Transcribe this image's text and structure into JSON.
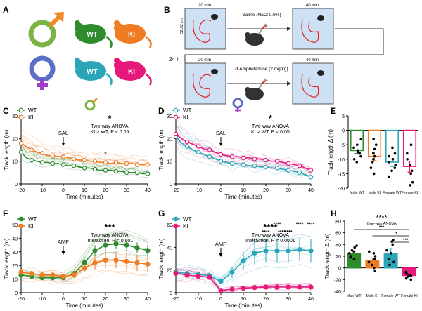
{
  "colors": {
    "male_wt": "#2e8b2e",
    "male_ki": "#ef7b22",
    "female_wt": "#2aa6b8",
    "female_ki": "#e6197a",
    "male_symbol": "#7cb342",
    "female_symbol_top": "#3ca0c8",
    "female_symbol_bottom": "#a03cc8"
  },
  "panelA": {
    "label": "A",
    "mice": [
      "WT",
      "KI",
      "WT",
      "KI"
    ]
  },
  "panelB": {
    "label": "B",
    "time1": "20 min",
    "time2": "40 min",
    "time3": "20 min",
    "time4": "40 min",
    "arena": "52x52 cm",
    "saline": "Saline (NaCl 0.9%)",
    "amph": "d-Amphetamine (2 mg/kg)",
    "gap": "24 h"
  },
  "stats": {
    "C": {
      "star": "*",
      "line1": "Two-way ANOVA",
      "line2": "KI > WT, P < 0.05",
      "marker": "SAL"
    },
    "D": {
      "star": "*",
      "line1": "Two-way ANOVA",
      "line2": "KI > WT, P < 0.05",
      "marker": "SAL"
    },
    "F": {
      "star": "***",
      "line1": "Two-way ANOVA",
      "line2": "Interaction, P < 0.001",
      "marker": "AMP"
    },
    "G": {
      "star": "****",
      "line1": "Two-way ANOVA",
      "line2": "Interaction, P < 0.0001",
      "marker": "AMP"
    },
    "H": {
      "star": "****",
      "line1": "One-way ANOVA"
    }
  },
  "chart_data": [
    {
      "panel": "C",
      "type": "line",
      "xlabel": "Time (minutes)",
      "ylabel": "Track length (m)",
      "xlim": [
        -20,
        40
      ],
      "ylim": [
        0,
        30
      ],
      "xticks": [
        -20,
        -10,
        0,
        10,
        20,
        30,
        40
      ],
      "yticks": [
        0,
        10,
        20,
        30
      ],
      "x": [
        -20,
        -17.5,
        -15,
        -12.5,
        -10,
        -7.5,
        -5,
        -2.5,
        0,
        2.5,
        5,
        7.5,
        10,
        12.5,
        15,
        17.5,
        20,
        22.5,
        25,
        27.5,
        30,
        32.5,
        35,
        37.5,
        40
      ],
      "series": [
        {
          "name": "WT",
          "values": [
            14,
            11.5,
            10.5,
            10,
            9.5,
            9.5,
            9,
            9,
            8.5,
            8,
            8,
            7.5,
            7,
            7,
            6.5,
            6,
            6,
            6,
            5.5,
            5.5,
            5,
            5,
            5,
            4.5,
            4.5
          ]
        },
        {
          "name": "KI",
          "values": [
            18,
            16.5,
            15,
            14,
            13.5,
            12.5,
            12.5,
            12,
            12,
            11.5,
            11,
            10.5,
            10.5,
            10,
            10,
            9.5,
            9.5,
            9,
            9.5,
            9,
            9,
            9,
            8.5,
            8.5,
            8.5
          ]
        }
      ],
      "annotation": "*",
      "annotation_x": 20
    },
    {
      "panel": "D",
      "type": "line",
      "xlabel": "Time (minutes)",
      "ylabel": "Track length (m)",
      "xlim": [
        -20,
        40
      ],
      "ylim": [
        0,
        30
      ],
      "xticks": [
        -20,
        -10,
        0,
        10,
        20,
        30,
        40
      ],
      "yticks": [
        0,
        10,
        20,
        30
      ],
      "x": [
        -20,
        -17.5,
        -15,
        -12.5,
        -10,
        -7.5,
        -5,
        -2.5,
        0,
        2.5,
        5,
        7.5,
        10,
        12.5,
        15,
        17.5,
        20,
        22.5,
        25,
        27.5,
        30,
        32.5,
        35,
        37.5,
        40
      ],
      "series": [
        {
          "name": "WT",
          "values": [
            21,
            18,
            16.5,
            15,
            14,
            13,
            12,
            11,
            10,
            9.5,
            9,
            9,
            8.5,
            8,
            8,
            7.5,
            7.5,
            7,
            7,
            6.5,
            6,
            5.5,
            5,
            4,
            3
          ]
        },
        {
          "name": "KI",
          "values": [
            22,
            20,
            18.5,
            17.5,
            16.5,
            15.5,
            15,
            14,
            13,
            12.5,
            12,
            12,
            11.5,
            11.5,
            11,
            11,
            10.5,
            10,
            10,
            9.5,
            9,
            8.5,
            8,
            7,
            6
          ]
        }
      ]
    },
    {
      "panel": "E",
      "type": "bar",
      "ylabel": "Track length Δ (m)",
      "categories": [
        "Male WT",
        "Male KI",
        "Female WT",
        "Female KI"
      ],
      "values": [
        -7,
        -9,
        -11,
        -12.5
      ],
      "errors": [
        1,
        1.5,
        1.5,
        2
      ],
      "ylim": [
        -20,
        5
      ],
      "yticks": [
        -20,
        -15,
        -10,
        -5,
        0,
        5
      ],
      "points": [
        [
          -3,
          -5,
          -6,
          -7,
          -7.5,
          -8,
          -9,
          -10,
          -11
        ],
        [
          -3,
          -5,
          -6.5,
          -8,
          -9,
          -10,
          -11,
          -13,
          -15
        ],
        [
          -6,
          -8,
          -9,
          -10,
          -11,
          -12,
          -13,
          -14,
          -16
        ],
        [
          -5,
          -8,
          -10,
          -12,
          -14,
          -15,
          -18,
          -19
        ]
      ]
    },
    {
      "panel": "F",
      "type": "line",
      "xlabel": "Time (minutes)",
      "ylabel": "Track length (m)",
      "xlim": [
        -20,
        40
      ],
      "ylim": [
        0,
        50
      ],
      "xticks": [
        -20,
        -10,
        0,
        10,
        20,
        30,
        40
      ],
      "yticks": [
        0,
        10,
        20,
        30,
        40,
        50
      ],
      "x": [
        -20,
        -15,
        -10,
        -5,
        0,
        5,
        10,
        15,
        20,
        25,
        30,
        35,
        40
      ],
      "series": [
        {
          "name": "WT",
          "values": [
            13,
            12,
            11,
            11,
            11,
            14,
            22,
            31,
            35,
            36,
            35,
            33,
            31
          ]
        },
        {
          "name": "KI",
          "values": [
            15,
            14,
            13,
            13,
            12,
            13,
            18,
            22,
            24,
            24,
            23,
            22,
            21
          ]
        }
      ],
      "errors": {
        "WT": [
          2,
          1.5,
          1.5,
          1.5,
          1.5,
          2,
          3,
          4,
          4,
          4,
          4,
          4,
          4
        ],
        "KI": [
          2,
          2,
          2,
          2,
          2,
          2,
          3,
          5,
          6,
          6,
          6,
          6,
          6
        ]
      }
    },
    {
      "panel": "G",
      "type": "line",
      "xlabel": "Time (minutes)",
      "ylabel": "Track length (m)",
      "xlim": [
        -20,
        40
      ],
      "ylim": [
        0,
        60
      ],
      "xticks": [
        -20,
        -10,
        0,
        10,
        20,
        30,
        40
      ],
      "yticks": [
        0,
        20,
        40,
        60
      ],
      "x": [
        -20,
        -15,
        -10,
        -5,
        0,
        5,
        10,
        15,
        20,
        25,
        30,
        35,
        40
      ],
      "series": [
        {
          "name": "WT",
          "values": [
            18,
            17,
            16,
            15,
            10,
            18,
            28,
            35,
            37,
            37,
            37,
            38,
            37
          ]
        },
        {
          "name": "KI",
          "values": [
            17,
            15.5,
            14.5,
            13.5,
            2,
            3,
            4,
            4.5,
            5,
            5,
            5,
            5,
            5
          ]
        }
      ],
      "errors": {
        "WT": [
          2,
          2,
          2,
          2,
          2,
          5,
          8,
          10,
          10,
          10,
          10,
          10,
          10
        ],
        "KI": [
          2,
          2,
          2,
          2,
          1,
          1,
          1,
          1.5,
          1.5,
          1.5,
          1.5,
          1.5,
          1.5
        ]
      },
      "sig": [
        {
          "x": 15,
          "y": 45,
          "label": "***"
        },
        {
          "x": 20,
          "y": 52,
          "label": "****"
        },
        {
          "x": 25,
          "y": 59,
          "label": "****"
        },
        {
          "x": 30,
          "y": 52,
          "label": "****"
        },
        {
          "x": 35,
          "y": 59,
          "label": "****"
        },
        {
          "x": 40,
          "y": 59,
          "label": "****"
        },
        {
          "x": 27,
          "y": 52,
          "label": "****"
        }
      ]
    },
    {
      "panel": "H",
      "type": "bar",
      "ylabel": "Track length Δ (m)",
      "categories": [
        "Male WT",
        "Male KI",
        "Female WT",
        "Female KI"
      ],
      "values": [
        25,
        12,
        25,
        -13
      ],
      "errors": [
        4,
        5,
        8,
        2
      ],
      "ylim": [
        -40,
        80
      ],
      "yticks": [
        -40,
        -20,
        0,
        20,
        40,
        60,
        80
      ],
      "points": [
        [
          15,
          18,
          20,
          25,
          28,
          30,
          35,
          38
        ],
        [
          -5,
          0,
          5,
          10,
          15,
          20,
          25,
          28
        ],
        [
          5,
          10,
          15,
          25,
          30,
          40,
          45,
          48
        ],
        [
          -20,
          -18,
          -15,
          -14,
          -12,
          -10,
          -8,
          -7
        ]
      ],
      "comparisons": [
        {
          "from": 0,
          "to": 3,
          "label": "***"
        },
        {
          "from": 1,
          "to": 3,
          "label": "*"
        },
        {
          "from": 2,
          "to": 3,
          "label": "***"
        }
      ]
    }
  ]
}
